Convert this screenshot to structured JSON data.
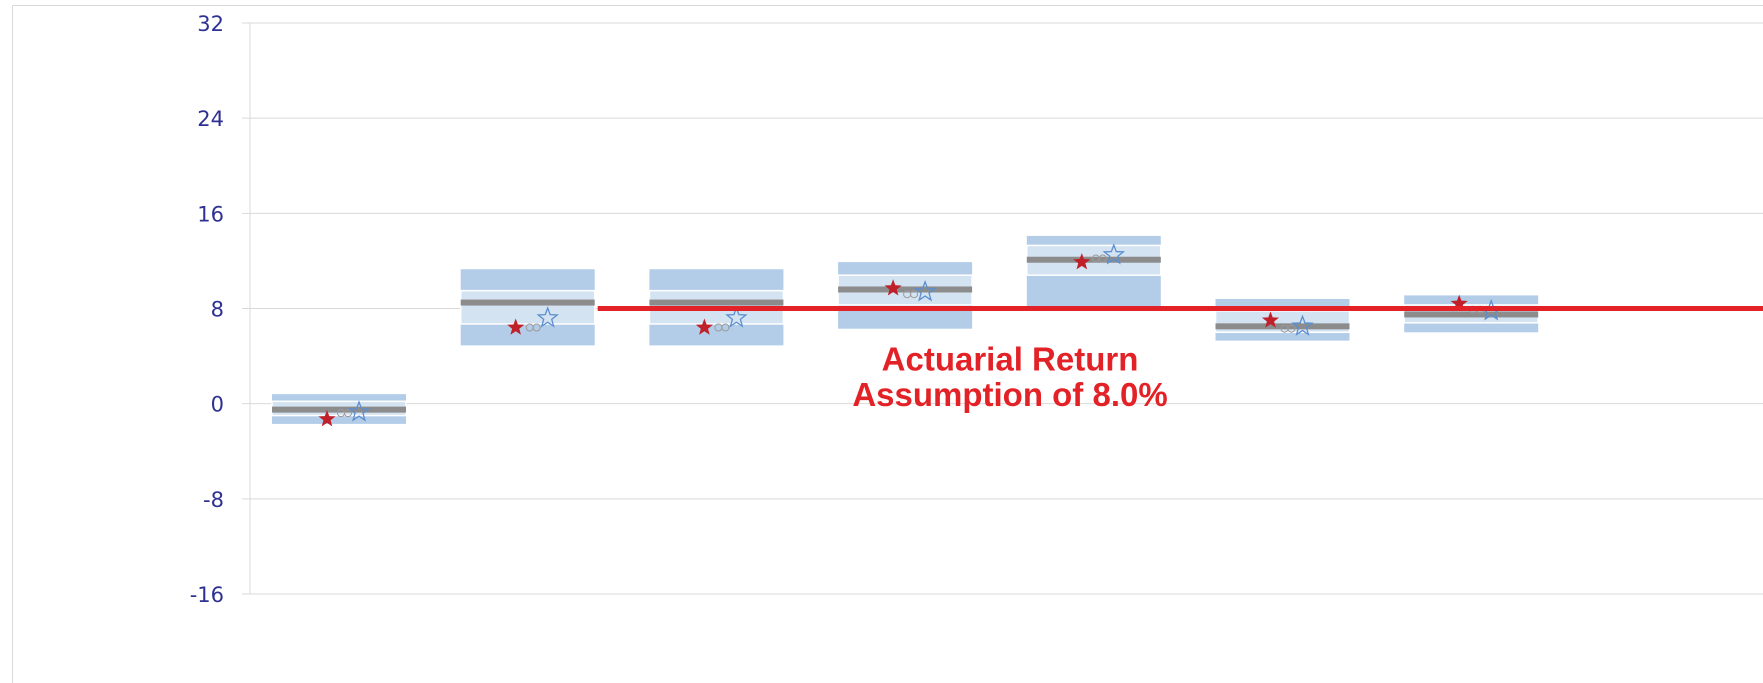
{
  "chart_data": {
    "type": "box",
    "title": "",
    "xlabel": "",
    "ylabel": "",
    "ylim": [
      -16,
      32
    ],
    "yticks": [
      "32",
      "24",
      "16",
      "8",
      "0",
      "-8",
      "-16"
    ],
    "ytick_values": [
      32,
      24,
      16,
      8,
      0,
      -8,
      -16
    ],
    "grid": true,
    "colors": {
      "box_outer": "#b3cde9",
      "box_inner": "#d4e3f2",
      "median": "#8c8c8c",
      "red_star": "#c0202a",
      "blue_star": "#5b8fd0",
      "circles": "#9a9a9a",
      "reference_line": "#e32227",
      "tick_text": "#2e3192",
      "grid": "#d9d9d9"
    },
    "boxes": [
      {
        "outer": [
          -1.7,
          0.8
        ],
        "inner": [
          -1.0,
          0.2
        ],
        "median": -0.5,
        "red_star": -1.3,
        "circles": -0.8,
        "blue_star": -0.7
      },
      {
        "outer": [
          4.9,
          11.3
        ],
        "inner": [
          6.7,
          9.5
        ],
        "median": 8.5,
        "red_star": 6.4,
        "circles": 6.4,
        "blue_star": 7.2
      },
      {
        "outer": [
          4.9,
          11.3
        ],
        "inner": [
          6.7,
          9.5
        ],
        "median": 8.5,
        "red_star": 6.4,
        "circles": 6.4,
        "blue_star": 7.2
      },
      {
        "outer": [
          6.3,
          11.9
        ],
        "inner": [
          8.3,
          10.8
        ],
        "median": 9.6,
        "red_star": 9.7,
        "circles": 9.2,
        "blue_star": 9.4
      },
      {
        "outer": [
          7.9,
          14.1
        ],
        "inner": [
          10.8,
          13.3
        ],
        "median": 12.1,
        "red_star": 11.9,
        "circles": 12.2,
        "blue_star": 12.5
      },
      {
        "outer": [
          5.3,
          8.8
        ],
        "inner": [
          6.0,
          7.8
        ],
        "median": 6.5,
        "red_star": 7.0,
        "circles": 6.3,
        "blue_star": 6.5
      },
      {
        "outer": [
          6.0,
          9.1
        ],
        "inner": [
          6.8,
          8.3
        ],
        "median": 7.5,
        "red_star": 8.4,
        "circles": 7.9,
        "blue_star": 7.8
      }
    ],
    "reference_line": {
      "value": 8.0,
      "from_box": 1
    },
    "annotations": [
      {
        "text": "Actuarial Return",
        "value": 2.8
      },
      {
        "text": "Assumption of 8.0%",
        "value": -0.2
      }
    ]
  }
}
